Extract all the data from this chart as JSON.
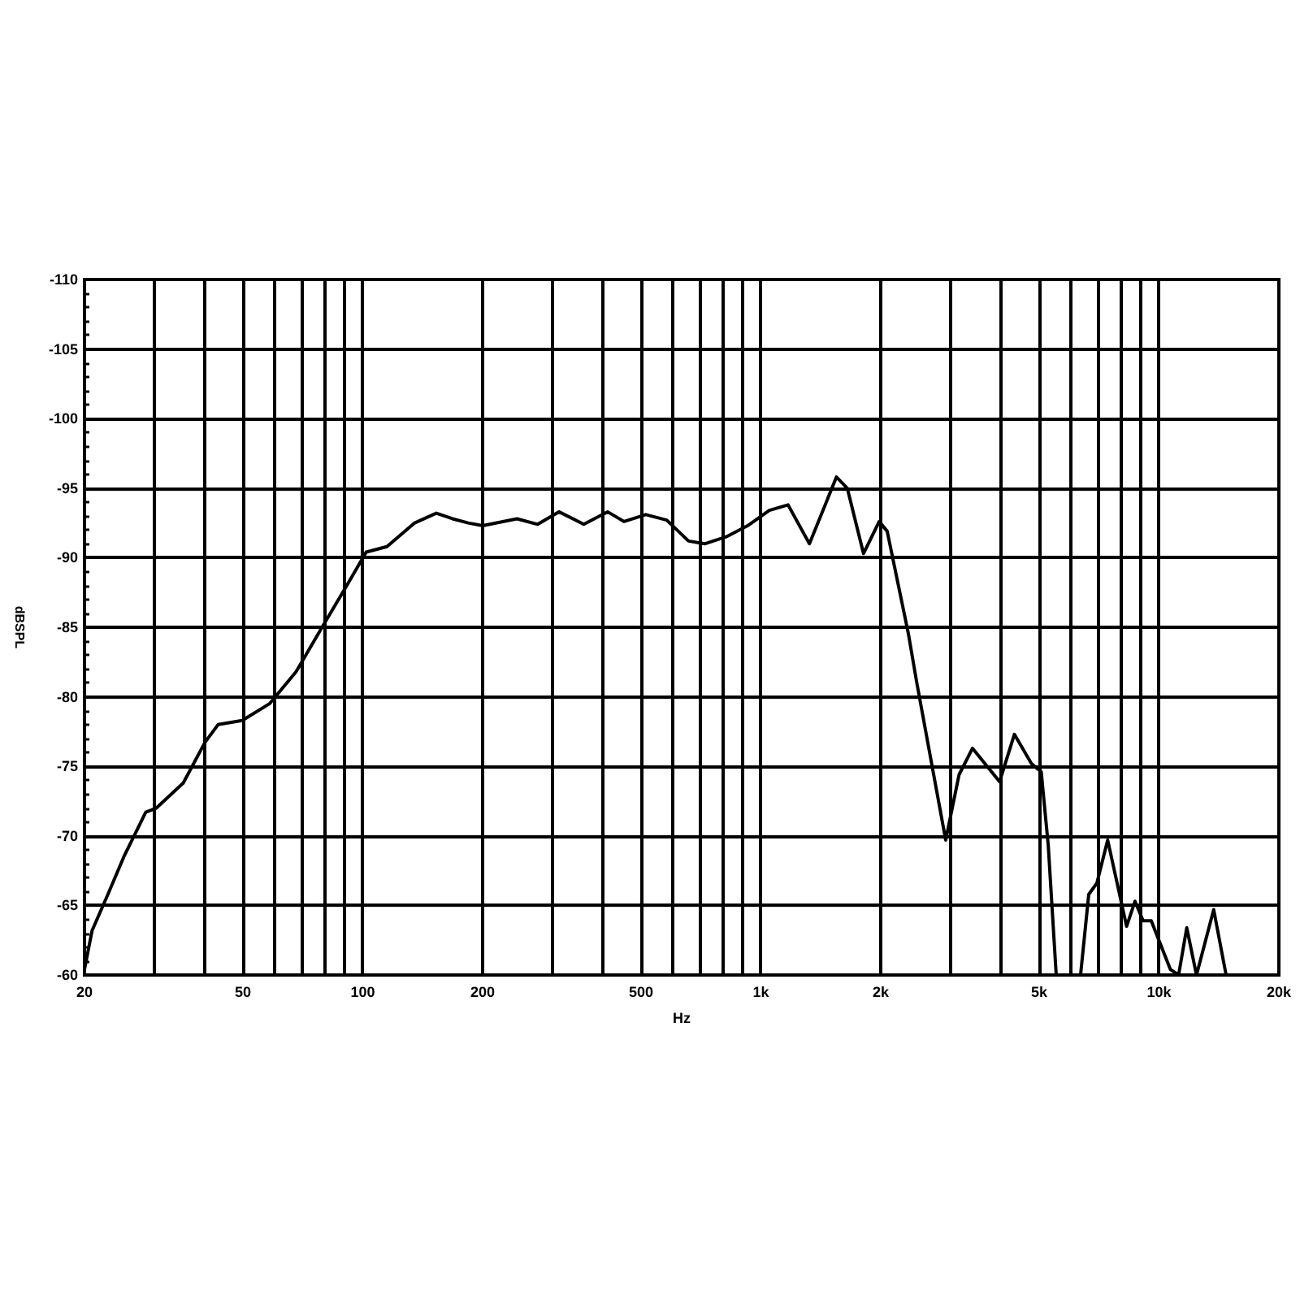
{
  "chart_data": {
    "type": "line",
    "xlabel": "Hz",
    "ylabel": "dBSPL",
    "log": "x",
    "grid": true,
    "marker": "none",
    "xlim": [
      20,
      20000
    ],
    "xticks": [
      20,
      {
        "value": 30,
        "label": null
      },
      {
        "value": 40,
        "label": null
      },
      50,
      {
        "value": 60,
        "label": null
      },
      {
        "value": 70,
        "label": null
      },
      {
        "value": 80,
        "label": null
      },
      {
        "value": 90,
        "label": null
      },
      100,
      200,
      {
        "value": 300,
        "label": null
      },
      {
        "value": 400,
        "label": null
      },
      500,
      {
        "value": 600,
        "label": null
      },
      {
        "value": 700,
        "label": null
      },
      {
        "value": 800,
        "label": null
      },
      {
        "value": 900,
        "label": null
      },
      {
        "value": 1000,
        "label": "1k"
      },
      {
        "value": 2000,
        "label": "2k"
      },
      {
        "value": 3000,
        "label": null
      },
      {
        "value": 4000,
        "label": null
      },
      {
        "value": 5000,
        "label": "5k"
      },
      {
        "value": 6000,
        "label": null
      },
      {
        "value": 7000,
        "label": null
      },
      {
        "value": 8000,
        "label": null
      },
      {
        "value": 9000,
        "label": null
      },
      {
        "value": 10000,
        "label": "10k"
      },
      {
        "value": 20000,
        "label": "20k"
      }
    ],
    "ylim": [
      -60,
      -110
    ],
    "yticks": [
      -110,
      -105,
      -100,
      -95,
      -90,
      -85,
      -80,
      -75,
      -70,
      -65,
      -60
    ],
    "series": [
      {
        "color": "#000000",
        "x": [
          20,
          20.9,
          22.9,
          25.2,
          28.5,
          30.3,
          35.4,
          40.1,
          43.3,
          49.8,
          58.3,
          68,
          79.4,
          89.9,
          102,
          115,
          135,
          153,
          168,
          184,
          200,
          244,
          275,
          311,
          359,
          412,
          453,
          514,
          580,
          658,
          722,
          818,
          926,
          1050,
          1170,
          1324,
          1548,
          1648,
          1810,
          1982,
          2076,
          2348,
          2464,
          2912,
          3146,
          3400,
          3976,
          4332,
          4780,
          5060,
          5270,
          5518,
          5900,
          6352,
          6660,
          6980,
          7430,
          8290,
          8700,
          9120,
          9560,
          10680,
          11200,
          11740,
          12420,
          13720,
          14740
        ],
        "values": [
          -60.4,
          -63.2,
          -65.8,
          -68.6,
          -71.7,
          -72.0,
          -73.8,
          -76.7,
          -78.0,
          -78.3,
          -79.5,
          -81.8,
          -85.1,
          -87.7,
          -90.4,
          -90.8,
          -92.5,
          -93.2,
          -92.8,
          -92.5,
          -92.3,
          -92.8,
          -92.4,
          -93.3,
          -92.4,
          -93.3,
          -92.6,
          -93.1,
          -92.7,
          -91.2,
          -91.0,
          -91.5,
          -92.3,
          -93.4,
          -93.8,
          -91.0,
          -95.8,
          -95.0,
          -90.3,
          -92.6,
          -91.9,
          -84.5,
          -81.0,
          -69.7,
          -74.4,
          -76.3,
          -73.9,
          -77.3,
          -75.2,
          -74.6,
          -69.3,
          -60,
          null,
          -60,
          -65.8,
          -66.6,
          -69.7,
          -63.5,
          -65.3,
          -63.9,
          -63.9,
          -60.4,
          -60,
          -63.4,
          -60,
          -64.7,
          -60
        ]
      }
    ]
  }
}
